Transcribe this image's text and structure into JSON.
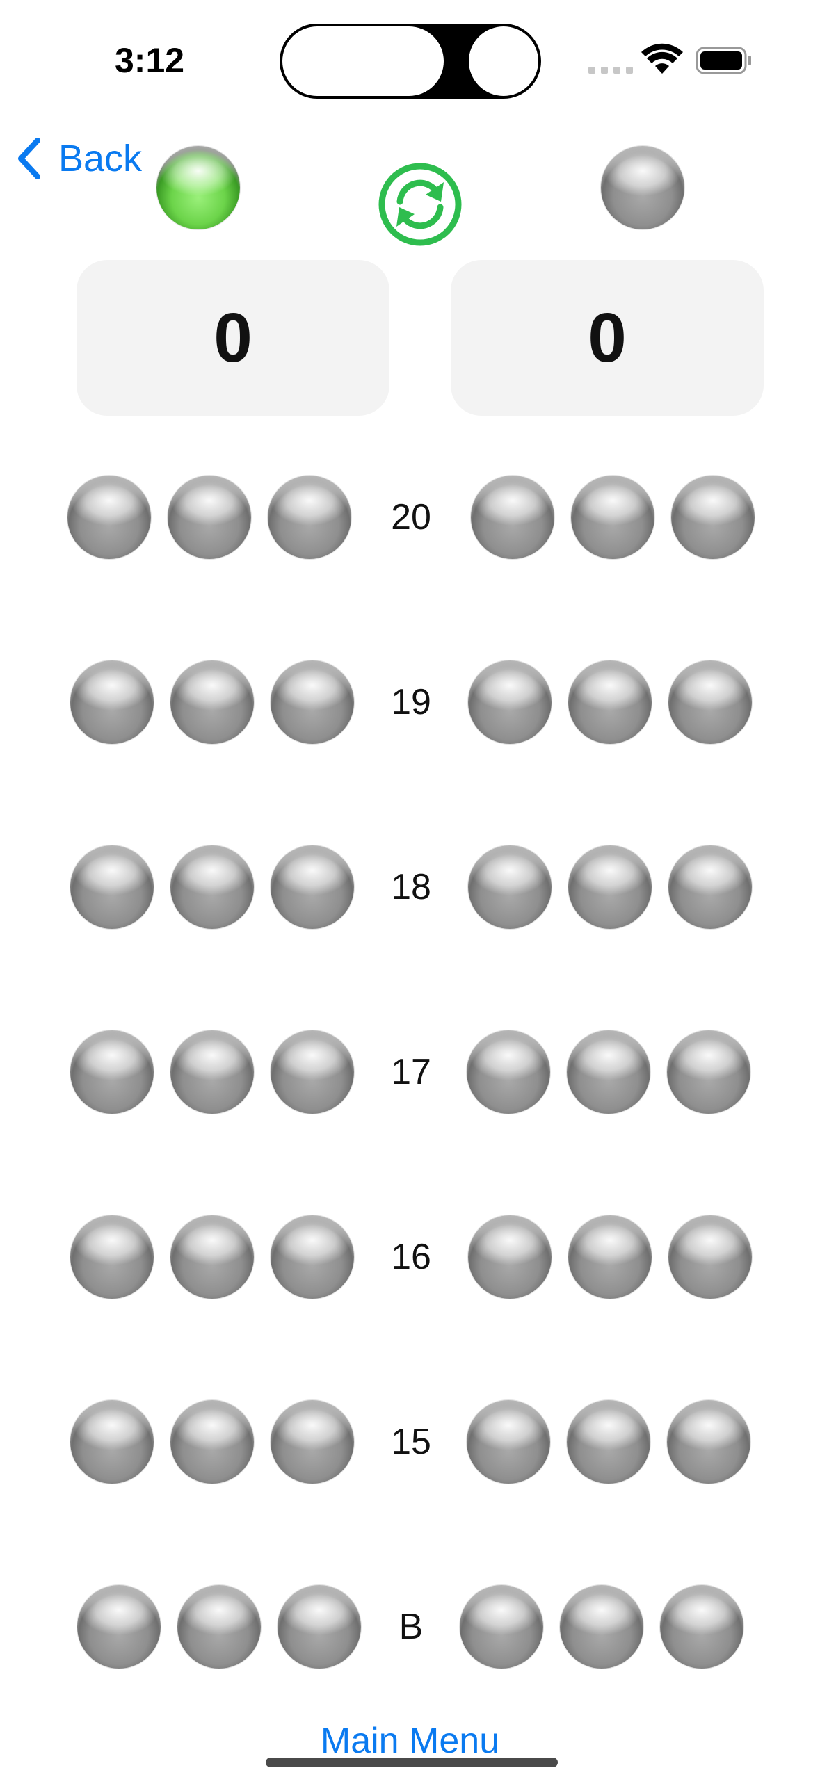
{
  "status_bar": {
    "time": "3:12"
  },
  "nav": {
    "back_label": "Back"
  },
  "scores": {
    "left": "0",
    "right": "0"
  },
  "rows": [
    {
      "label": "20"
    },
    {
      "label": "19"
    },
    {
      "label": "18"
    },
    {
      "label": "17"
    },
    {
      "label": "16"
    },
    {
      "label": "15"
    },
    {
      "label": "B"
    }
  ],
  "turn_indicator": {
    "active_player": "left",
    "active_color": "#5fd13c"
  },
  "refresh_color": "#2ebd4e",
  "accent_color": "#0a7af0",
  "footer": {
    "main_menu_label": "Main Menu"
  }
}
